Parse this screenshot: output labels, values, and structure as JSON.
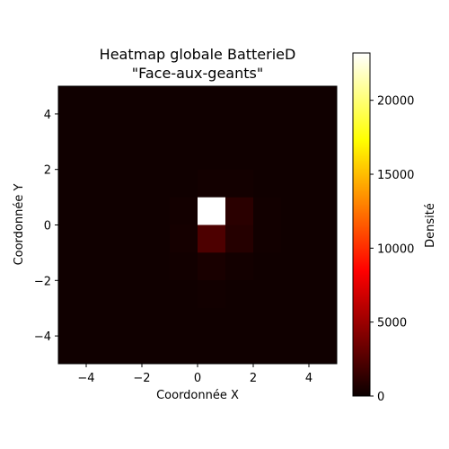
{
  "chart_data": {
    "type": "heatmap",
    "title": "Heatmap globale BatterieD\n\"Face-aux-geants\"",
    "title_lines": [
      "Heatmap globale BatterieD",
      "\"Face-aux-geants\""
    ],
    "xlabel": "Coordonnée X",
    "ylabel": "Coordonnée Y",
    "colorbar_label": "Densité",
    "colormap": "hot",
    "xlim": [
      -5,
      5
    ],
    "ylim": [
      -5,
      5
    ],
    "x_ticks": [
      -4,
      -2,
      0,
      2,
      4
    ],
    "x_tick_labels": [
      "−4",
      "−2",
      "0",
      "2",
      "4"
    ],
    "y_ticks": [
      -4,
      -2,
      0,
      2,
      4
    ],
    "y_tick_labels": [
      "−4",
      "−2",
      "0",
      "2",
      "4"
    ],
    "colorbar_range": [
      0,
      23200
    ],
    "colorbar_ticks": [
      0,
      5000,
      10000,
      15000,
      20000
    ],
    "colorbar_tick_labels": [
      "0",
      "5000",
      "10000",
      "15000",
      "20000"
    ],
    "bin_size": 1,
    "cells": [
      {
        "x": 0,
        "y": 0,
        "value": 23200
      },
      {
        "x": 1,
        "y": 0,
        "value": 1100
      },
      {
        "x": 0,
        "y": -1,
        "value": 2300
      },
      {
        "x": 1,
        "y": -1,
        "value": 900
      },
      {
        "x": -1,
        "y": -1,
        "value": 350
      },
      {
        "x": 0,
        "y": -2,
        "value": 500
      },
      {
        "x": 1,
        "y": -2,
        "value": 300
      },
      {
        "x": -1,
        "y": -2,
        "value": 250
      },
      {
        "x": 2,
        "y": -1,
        "value": 250
      },
      {
        "x": -1,
        "y": 0,
        "value": 300
      },
      {
        "x": 0,
        "y": 1,
        "value": 300
      },
      {
        "x": 1,
        "y": 1,
        "value": 280
      },
      {
        "x": 0,
        "y": -3,
        "value": 250
      },
      {
        "x": 2,
        "y": 0,
        "value": 250
      }
    ],
    "background_value": 200,
    "grid": false
  }
}
